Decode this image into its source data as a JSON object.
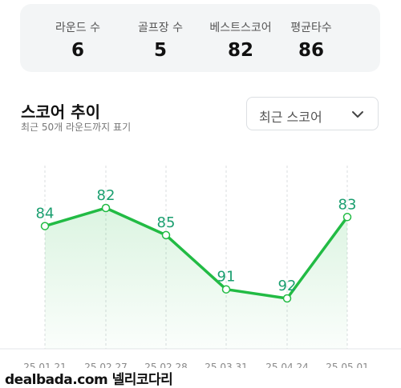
{
  "stats": [
    {
      "label": "라운드 수",
      "value": "6"
    },
    {
      "label": "골프장 수",
      "value": "5"
    },
    {
      "label": "베스트스코어",
      "value": "82"
    },
    {
      "label": "평균타수",
      "value": "86"
    }
  ],
  "section": {
    "title": "스코어 추이",
    "subtitle": "최근 50개 라운드까지 표기"
  },
  "dropdown": {
    "selected": "최근 스코어",
    "icon": "chevron-down-icon"
  },
  "colors": {
    "line": "#22bb44",
    "label": "#1a9e6f"
  },
  "chart_data": {
    "type": "area",
    "categories": [
      "25.01.21",
      "25.02.27",
      "25.02.28",
      "25.03.31",
      "25.04.24",
      "25.05.01"
    ],
    "values": [
      84,
      82,
      85,
      91,
      92,
      83
    ],
    "title": "",
    "xlabel": "",
    "ylabel": "",
    "grid": "vertical-dashed"
  },
  "watermark": "dealbada.com  넬리코다리"
}
